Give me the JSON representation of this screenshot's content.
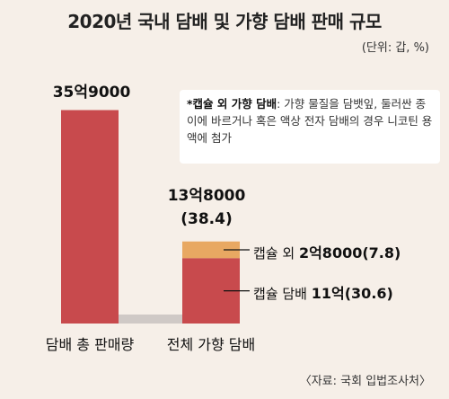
{
  "title": "2020년 국내 담배 및 가향 담배 판매 규모",
  "unit": "(단위: 갑, %)",
  "note": {
    "label": "*캡슐 외 가향 담배",
    "text": ": 가향 물질을 담뱃잎, 둘러싼 종이에 바르거나 혹은 액상 전자 담배의 경우 니코틴 용액에 첨가"
  },
  "source": "〈자료: 국회 입법조사처〉",
  "colors": {
    "background": "#f6efe8",
    "bar_red": "#c84a4d",
    "bar_orange": "#e8a862",
    "connector": "#cfc9c6"
  },
  "chart_data": {
    "type": "bar",
    "categories": [
      "담배 총 판매량",
      "전체 가향 담배"
    ],
    "ylim": [
      0,
      3900000000
    ],
    "bars": [
      {
        "category": "담배 총 판매량",
        "total": 3590000000,
        "total_label": "35억9000",
        "segments": [
          {
            "name": "담배 총 판매량",
            "value": 3590000000,
            "color": "#c84a4d"
          }
        ]
      },
      {
        "category": "전체 가향 담배",
        "total": 1380000000,
        "total_label": "13억8000",
        "share_label": "(38.4)",
        "segments": [
          {
            "name": "캡슐 담배",
            "value": 1100000000,
            "percent": 30.6,
            "value_label": "11억(30.6)",
            "color": "#c84a4d"
          },
          {
            "name": "캡슐 외",
            "value": 280000000,
            "percent": 7.8,
            "value_label": "2억8000(7.8)",
            "color": "#e8a862"
          }
        ]
      }
    ]
  }
}
